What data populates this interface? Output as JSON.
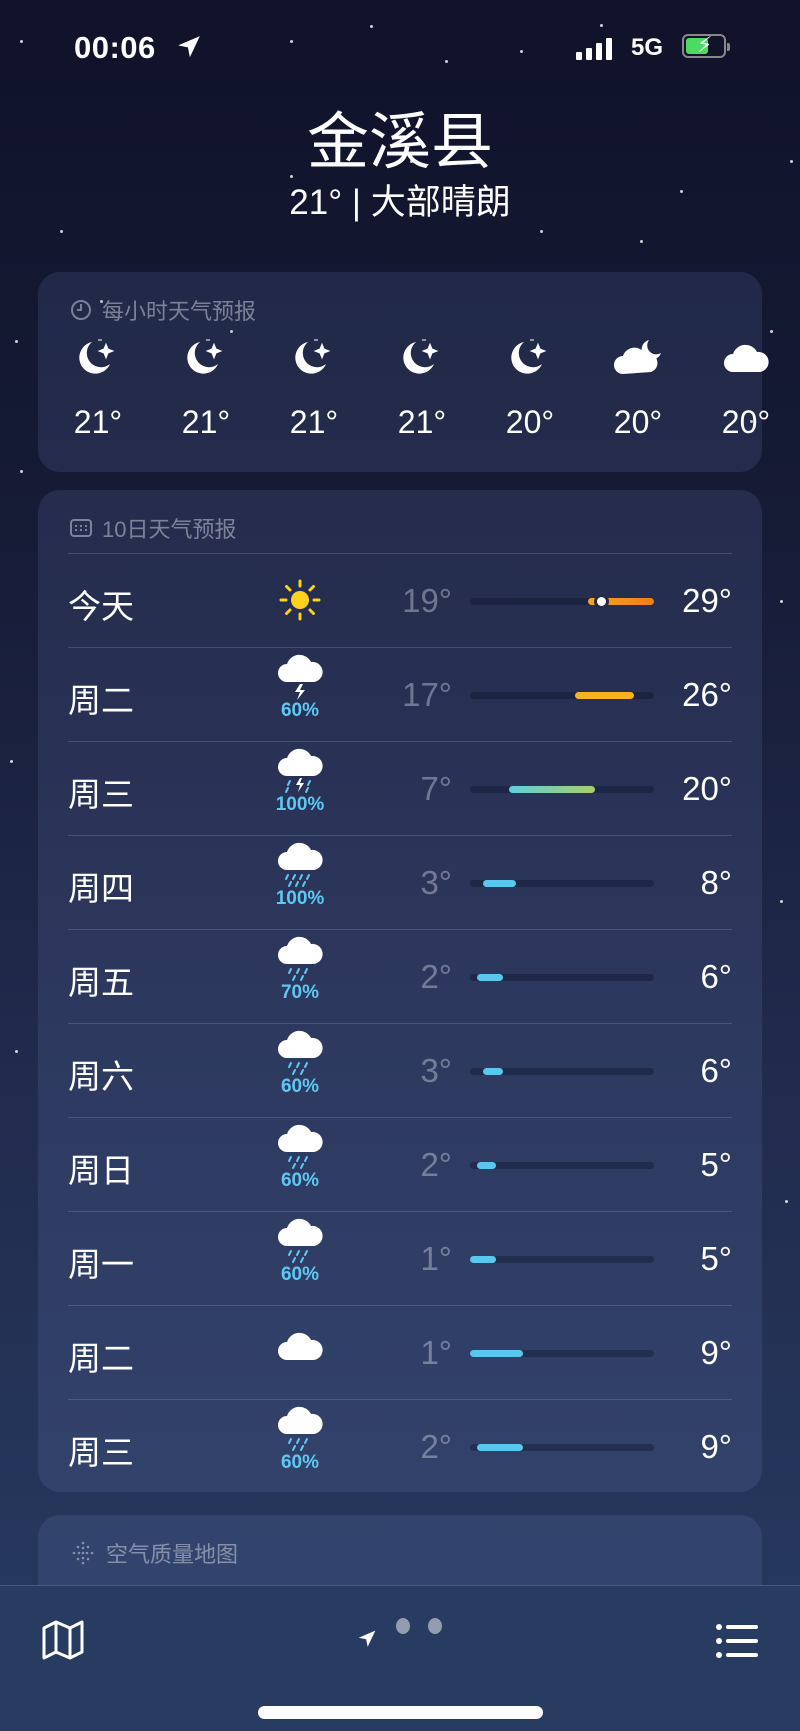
{
  "status": {
    "time": "00:06",
    "network": "5G",
    "battery_level": 0.6,
    "charging": true
  },
  "header": {
    "city": "金溪县",
    "current": "21° | 大部晴朗"
  },
  "hourly": {
    "title": "每小时天气预报",
    "icon": "clock-icon",
    "items": [
      {
        "icon": "moon-stars",
        "temp": "21°"
      },
      {
        "icon": "moon-stars",
        "temp": "21°"
      },
      {
        "icon": "moon-stars",
        "temp": "21°"
      },
      {
        "icon": "moon-stars",
        "temp": "21°"
      },
      {
        "icon": "moon-stars",
        "temp": "20°"
      },
      {
        "icon": "cloud-moon",
        "temp": "20°"
      },
      {
        "icon": "cloud",
        "temp": "20°"
      }
    ]
  },
  "daily": {
    "title": "10日天气预报",
    "icon": "calendar-icon",
    "range_min": 1,
    "range_max": 29,
    "current_temp": 21,
    "days": [
      {
        "day": "今天",
        "icon": "sun",
        "pop": "",
        "low": "19°",
        "high": "29°",
        "lo": 19,
        "hi": 29,
        "color": "linear-gradient(90deg,#f5a623,#f07d1a)"
      },
      {
        "day": "周二",
        "icon": "thunder",
        "pop": "60%",
        "low": "17°",
        "high": "26°",
        "lo": 17,
        "hi": 26,
        "color": "#f7b21d"
      },
      {
        "day": "周三",
        "icon": "thunder-rain",
        "pop": "100%",
        "low": "7°",
        "high": "20°",
        "lo": 7,
        "hi": 20,
        "color": "linear-gradient(90deg,#5fcfdc,#a9cd6c)"
      },
      {
        "day": "周四",
        "icon": "heavy-rain",
        "pop": "100%",
        "low": "3°",
        "high": "8°",
        "lo": 3,
        "hi": 8,
        "color": "#5ac8ee"
      },
      {
        "day": "周五",
        "icon": "rain",
        "pop": "70%",
        "low": "2°",
        "high": "6°",
        "lo": 2,
        "hi": 6,
        "color": "#5ac8ee"
      },
      {
        "day": "周六",
        "icon": "rain",
        "pop": "60%",
        "low": "3°",
        "high": "6°",
        "lo": 3,
        "hi": 6,
        "color": "#5ac8ee"
      },
      {
        "day": "周日",
        "icon": "rain",
        "pop": "60%",
        "low": "2°",
        "high": "5°",
        "lo": 2,
        "hi": 5,
        "color": "#5ac8ee"
      },
      {
        "day": "周一",
        "icon": "rain",
        "pop": "60%",
        "low": "1°",
        "high": "5°",
        "lo": 1,
        "hi": 5,
        "color": "#5ac8ee"
      },
      {
        "day": "周二",
        "icon": "cloud",
        "pop": "",
        "low": "1°",
        "high": "9°",
        "lo": 1,
        "hi": 9,
        "color": "#5ac8ee"
      },
      {
        "day": "周三",
        "icon": "rain",
        "pop": "60%",
        "low": "2°",
        "high": "9°",
        "lo": 2,
        "hi": 9,
        "color": "#5ac8ee"
      }
    ]
  },
  "air_quality": {
    "title": "空气质量地图",
    "icon": "dots-grid-icon"
  },
  "bottom": {
    "map": "map-icon",
    "list": "list-icon",
    "pages": 3,
    "active_page": 0
  }
}
